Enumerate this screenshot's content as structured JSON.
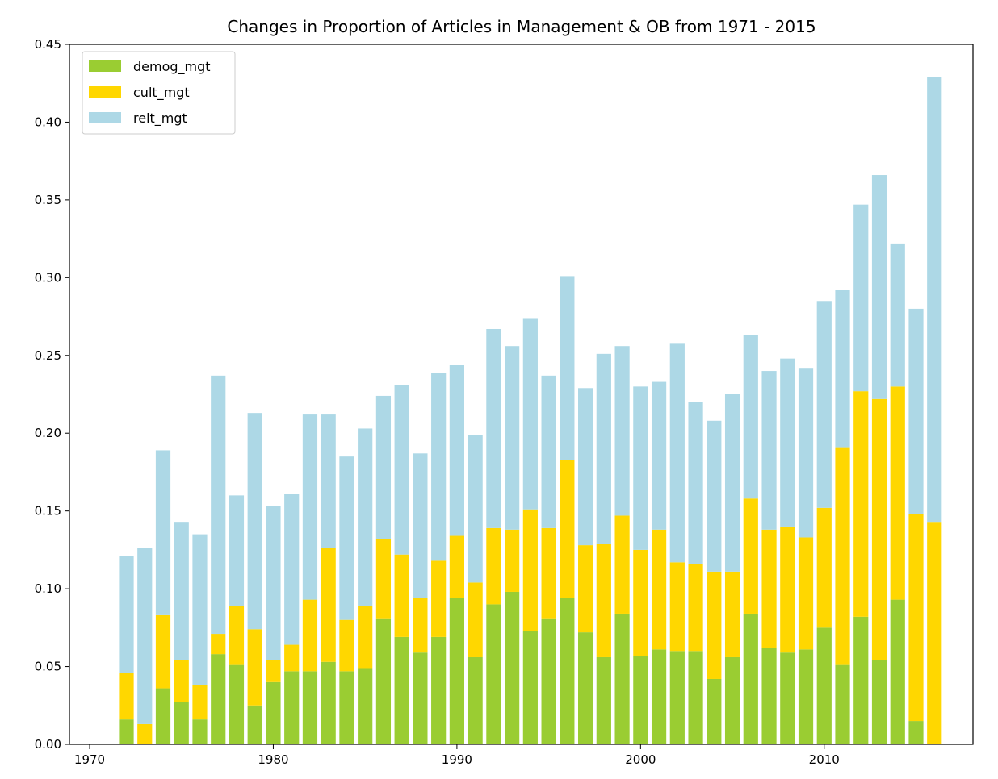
{
  "chart_data": {
    "type": "bar",
    "stacked": true,
    "title": "Changes in Proportion of Articles in Management & OB from 1971 - 2015",
    "xlabel": "",
    "ylabel": "",
    "xlim": [
      1968.9,
      2018.1
    ],
    "ylim": [
      0,
      0.45
    ],
    "x_ticks": [
      1970,
      1980,
      1990,
      2000,
      2010
    ],
    "y_ticks": [
      0.0,
      0.05,
      0.1,
      0.15,
      0.2,
      0.25,
      0.3,
      0.35,
      0.4,
      0.45
    ],
    "grid": false,
    "legend_position": "top-left",
    "x": [
      1972,
      1973,
      1974,
      1975,
      1976,
      1977,
      1978,
      1979,
      1980,
      1981,
      1982,
      1983,
      1984,
      1985,
      1986,
      1987,
      1988,
      1989,
      1990,
      1991,
      1992,
      1993,
      1994,
      1995,
      1996,
      1997,
      1998,
      1999,
      2000,
      2001,
      2002,
      2003,
      2004,
      2005,
      2006,
      2007,
      2008,
      2009,
      2010,
      2011,
      2012,
      2013,
      2014,
      2015,
      2016
    ],
    "series": [
      {
        "name": "demog_mgt",
        "color": "#9acd32",
        "values": [
          0.016,
          0.0,
          0.036,
          0.027,
          0.016,
          0.058,
          0.051,
          0.025,
          0.04,
          0.047,
          0.047,
          0.053,
          0.047,
          0.049,
          0.081,
          0.069,
          0.059,
          0.069,
          0.094,
          0.056,
          0.09,
          0.098,
          0.073,
          0.081,
          0.094,
          0.072,
          0.056,
          0.084,
          0.057,
          0.061,
          0.06,
          0.06,
          0.042,
          0.056,
          0.084,
          0.062,
          0.059,
          0.061,
          0.075,
          0.051,
          0.082,
          0.054,
          0.093,
          0.015,
          0.0
        ]
      },
      {
        "name": "cult_mgt",
        "color": "#ffd700",
        "values": [
          0.03,
          0.013,
          0.047,
          0.027,
          0.022,
          0.013,
          0.038,
          0.049,
          0.014,
          0.017,
          0.046,
          0.073,
          0.033,
          0.04,
          0.051,
          0.053,
          0.035,
          0.049,
          0.04,
          0.048,
          0.049,
          0.04,
          0.078,
          0.058,
          0.089,
          0.056,
          0.073,
          0.063,
          0.068,
          0.077,
          0.057,
          0.056,
          0.069,
          0.055,
          0.074,
          0.076,
          0.081,
          0.072,
          0.077,
          0.14,
          0.145,
          0.168,
          0.137,
          0.133,
          0.143
        ]
      },
      {
        "name": "relt_mgt",
        "color": "#add8e6",
        "values": [
          0.075,
          0.113,
          0.106,
          0.089,
          0.097,
          0.166,
          0.071,
          0.139,
          0.099,
          0.097,
          0.119,
          0.086,
          0.105,
          0.114,
          0.092,
          0.109,
          0.093,
          0.121,
          0.11,
          0.095,
          0.128,
          0.118,
          0.123,
          0.098,
          0.118,
          0.101,
          0.122,
          0.109,
          0.105,
          0.095,
          0.141,
          0.104,
          0.097,
          0.114,
          0.105,
          0.102,
          0.108,
          0.109,
          0.133,
          0.101,
          0.12,
          0.144,
          0.092,
          0.132,
          0.286
        ]
      }
    ]
  }
}
